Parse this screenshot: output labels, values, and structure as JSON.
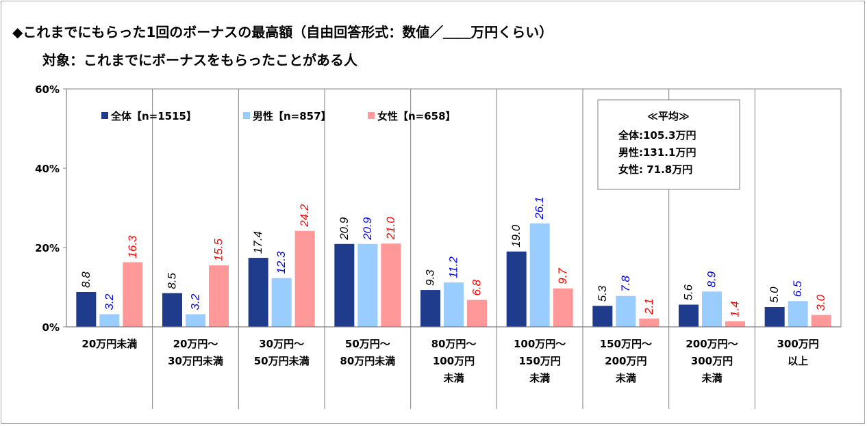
{
  "header": {
    "title": "◆これまでにもらった1回のボーナスの最高額（自由回答形式：数値／＿＿万円くらい）",
    "subtitle": "対象：これまでにボーナスをもらったことがある人"
  },
  "chart_data": {
    "type": "bar",
    "ylim": [
      0,
      60
    ],
    "yticks": [
      0,
      20,
      40,
      60
    ],
    "ytick_labels": [
      "0%",
      "20%",
      "40%",
      "60%"
    ],
    "grid": false,
    "legend_position": "top-left",
    "categories": [
      [
        "20万円未満"
      ],
      [
        "20万円～",
        "30万円未満"
      ],
      [
        "30万円～",
        "50万円未満"
      ],
      [
        "50万円～",
        "80万円未満"
      ],
      [
        "80万円～",
        "100万円",
        "未満"
      ],
      [
        "100万円～",
        "150万円",
        "未満"
      ],
      [
        "150万円～",
        "200万円",
        "未満"
      ],
      [
        "200万円～",
        "300万円",
        "未満"
      ],
      [
        "300万円",
        "以上"
      ]
    ],
    "series": [
      {
        "name": "全体【n=1515】",
        "color": "#1f3b8c",
        "label_color": "#000000",
        "values": [
          8.8,
          8.5,
          17.4,
          20.9,
          9.3,
          19.0,
          5.3,
          5.6,
          5.0
        ]
      },
      {
        "name": "男性【n=857】",
        "color": "#99ccff",
        "label_color": "#0000ff",
        "values": [
          3.2,
          3.2,
          12.3,
          20.9,
          11.2,
          26.1,
          7.8,
          8.9,
          6.5
        ]
      },
      {
        "name": "女性【n=658】",
        "color": "#ff9999",
        "label_color": "#ff0000",
        "values": [
          16.3,
          15.5,
          24.2,
          21.0,
          6.8,
          9.7,
          2.1,
          1.4,
          3.0
        ]
      }
    ],
    "average_box": {
      "title": "≪平均≫",
      "lines": [
        "全体:105.3万円",
        "男性:131.1万円",
        "女性:  71.8万円"
      ]
    }
  }
}
